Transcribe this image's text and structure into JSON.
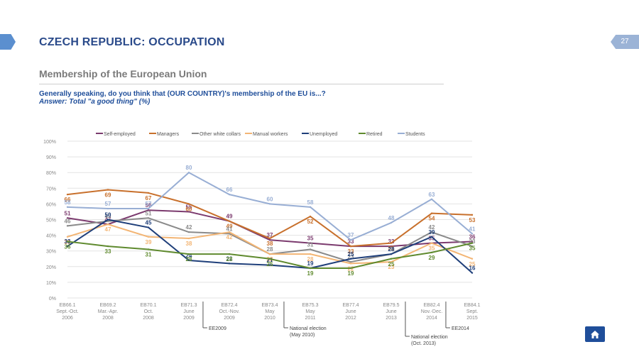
{
  "header": {
    "title": "CZECH REPUBLIC: OCCUPATION",
    "page_number": "27",
    "subtitle": "Membership of the European Union",
    "question": "Generally speaking, do you think that (OUR COUNTRY)'s membership of the EU is...?",
    "answer": "Answer: Total \"a good thing\" (%)"
  },
  "icons": {
    "home": "home-icon",
    "left_tab": "chevron-tab-icon"
  },
  "chart_data": {
    "type": "line",
    "ylim": [
      0,
      100
    ],
    "yticks": [
      "0%",
      "10%",
      "20%",
      "30%",
      "40%",
      "50%",
      "60%",
      "70%",
      "80%",
      "90%",
      "100%"
    ],
    "grid": true,
    "legend_position": "top",
    "categories": [
      [
        "EB66.1",
        "Sept.-Oct.",
        "2006"
      ],
      [
        "EB69.2",
        "Mar.-Apr.",
        "2008"
      ],
      [
        "EB70.1",
        "Oct.",
        "2008"
      ],
      [
        "EB71.3",
        "June",
        "2009"
      ],
      [
        "EB72.4",
        "Oct.-Nov.",
        "2009"
      ],
      [
        "EB73.4",
        "May",
        "2010"
      ],
      [
        "EB75.3",
        "May",
        "2011"
      ],
      [
        "EB77.4",
        "June",
        "2012"
      ],
      [
        "EB79.5",
        "June",
        "2013"
      ],
      [
        "EB82.4",
        "Nov.-Dec.",
        "2014"
      ],
      [
        "EB84.1",
        "Sept.",
        "2015"
      ]
    ],
    "series": [
      {
        "name": "Self-employed",
        "color": "#7b3a6e",
        "values": [
          51,
          47,
          56,
          55,
          49,
          37,
          35,
          33,
          33,
          35,
          36
        ]
      },
      {
        "name": "Managers",
        "color": "#c8702c",
        "values": [
          66,
          69,
          67,
          60,
          49,
          38,
          52,
          33,
          35,
          54,
          53
        ]
      },
      {
        "name": "Other white collars",
        "color": "#8a8a8a",
        "values": [
          46,
          49,
          51,
          42,
          41,
          28,
          31,
          23,
          28,
          42,
          33
        ]
      },
      {
        "name": "Manual workers",
        "color": "#f3b574",
        "values": [
          39,
          47,
          39,
          38,
          42,
          28,
          28,
          22,
          23,
          35,
          25
        ]
      },
      {
        "name": "Unemployed",
        "color": "#1f3f7a",
        "values": [
          33,
          50,
          45,
          24,
          22,
          21,
          19,
          25,
          28,
          39,
          16
        ]
      },
      {
        "name": "Retired",
        "color": "#5f8a2e",
        "values": [
          36,
          33,
          31,
          28,
          28,
          25,
          19,
          19,
          25,
          29,
          35
        ]
      },
      {
        "name": "Students",
        "color": "#98aed4",
        "values": [
          58,
          57,
          57,
          80,
          66,
          60,
          58,
          37,
          48,
          63,
          41
        ]
      }
    ],
    "annotations": [
      {
        "label": "EE2009",
        "after_category": 3
      },
      {
        "label": "National election\n(May 2010)",
        "after_category": 5
      },
      {
        "label": "National election\n(Oct. 2013)",
        "after_category": 8
      },
      {
        "label": "EE2014",
        "after_category": 9
      }
    ]
  }
}
